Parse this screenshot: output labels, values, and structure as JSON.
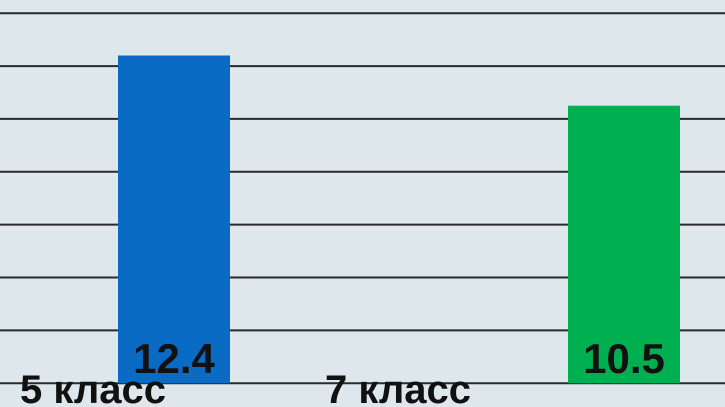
{
  "chart_data": {
    "type": "bar",
    "categories": [
      "5 класс",
      "7 класс"
    ],
    "series": [
      {
        "name": "5 класс",
        "color": "#0a6bc4",
        "values": [
          12.4,
          null
        ]
      },
      {
        "name": "7 класс",
        "color": "#00b050",
        "values": [
          null,
          10.5
        ]
      }
    ],
    "ylim": [
      -0.9,
      14.5
    ],
    "yticks": [
      0,
      2,
      4,
      6,
      8,
      10,
      12,
      14
    ],
    "grid": true
  }
}
